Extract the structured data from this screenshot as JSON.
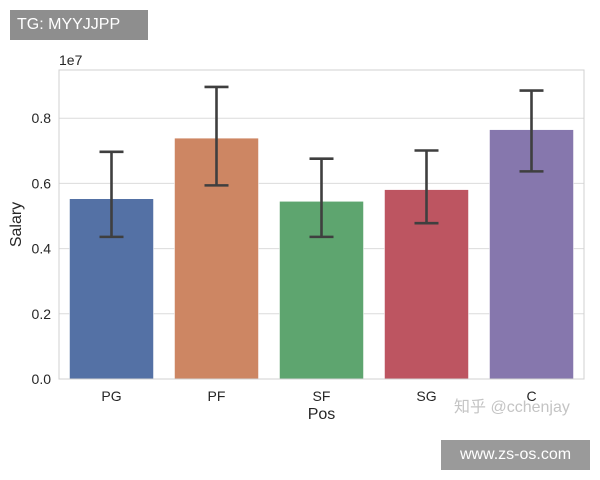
{
  "watermarks": {
    "top_left": "TG: MYYJJPP",
    "bottom_right": "www.zs-os.com",
    "zhihu": "知乎 @cchenjay"
  },
  "chart_data": {
    "type": "bar",
    "title": "",
    "xlabel": "Pos",
    "ylabel": "Salary",
    "offset_label": "1e7",
    "categories": [
      "PG",
      "PF",
      "SF",
      "SG",
      "C"
    ],
    "values": [
      0.553,
      0.739,
      0.545,
      0.581,
      0.765
    ],
    "error_low": [
      0.436,
      0.594,
      0.436,
      0.478,
      0.637
    ],
    "error_high": [
      0.697,
      0.896,
      0.676,
      0.701,
      0.885
    ],
    "colors": [
      "#5471a5",
      "#cd8663",
      "#5ea56f",
      "#bd5561",
      "#8677ad"
    ],
    "error_color": "#3f3f3f",
    "yticks": [
      0.0,
      0.2,
      0.4,
      0.6,
      0.8
    ],
    "ytick_labels": [
      "0.0",
      "0.2",
      "0.4",
      "0.6",
      "0.8"
    ],
    "ylim": [
      0,
      0.948
    ],
    "grid": "horizontal",
    "legend": "none"
  }
}
